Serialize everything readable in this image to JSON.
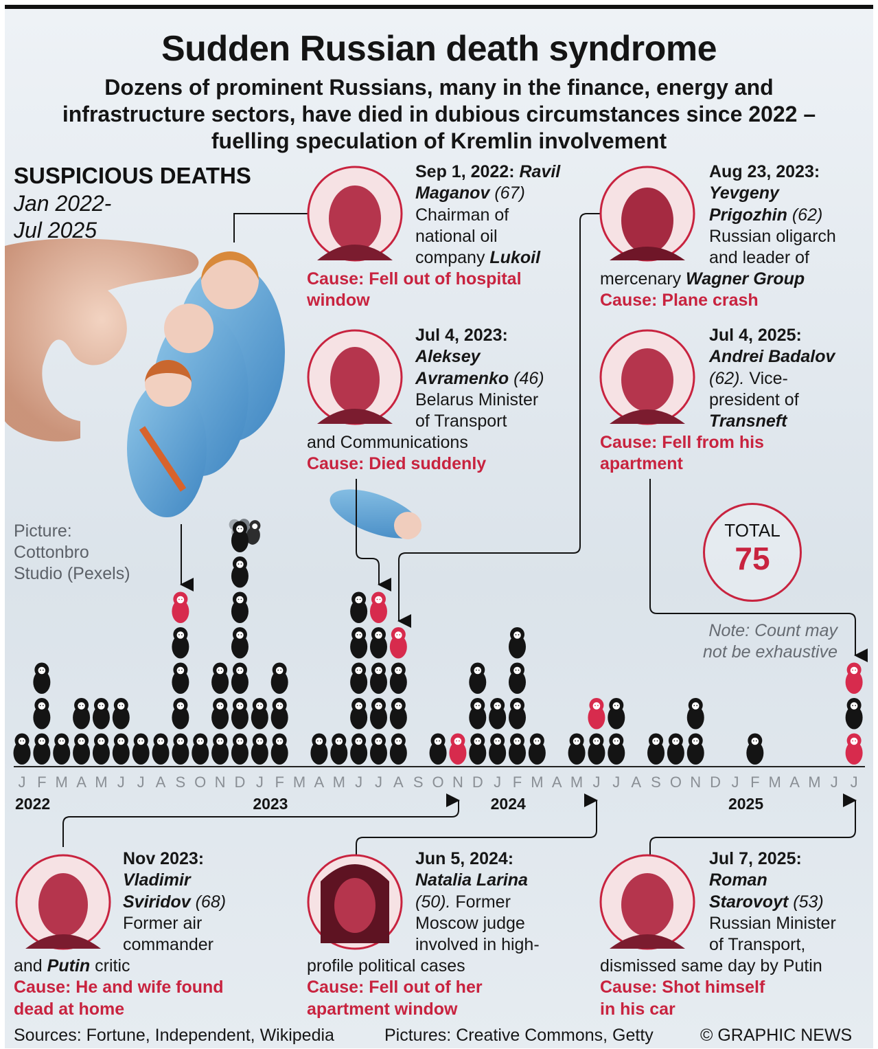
{
  "title": "Sudden Russian death syndrome",
  "subtitle": "Dozens of prominent Russians, many in the finance, energy and infrastructure sectors, have died in dubious circumstances since 2022 – fuelling speculation of Kremlin involvement",
  "section_label": "SUSPICIOUS DEATHS",
  "period_label": "Jan 2022-\nJul 2025",
  "picture_credit": "Picture:\nCottonbro\nStudio (Pexels)",
  "total": {
    "label": "TOTAL",
    "value": "75"
  },
  "note": "Note: Count may not be exhaustive",
  "footer": {
    "sources": "Sources: Fortune, Independent, Wikipedia",
    "pictures": "Pictures: Creative Commons, Getty",
    "copyright": "© GRAPHIC NEWS"
  },
  "colors": {
    "accent": "#c8233f",
    "doll": "#141414",
    "highlight": "#d72b4d"
  },
  "icons": {
    "doll": "matryoshka-doll-icon"
  },
  "stories": [
    {
      "id": "maganov",
      "date": "Sep 1, 2022:",
      "name_a": "Ravil",
      "name_b": "Maganov",
      "age": "(67)",
      "desc": [
        "Chairman of",
        "national oil",
        "company"
      ],
      "org": "Lukoil",
      "cause": [
        "Cause: Fell out of hospital",
        "window"
      ]
    },
    {
      "id": "avramenko",
      "date": "Jul 4, 2023:",
      "name_a": "Aleksey",
      "name_b": "Avramenko",
      "age": "(46)",
      "desc": [
        "Belarus Minister",
        "of Transport",
        "and Communications"
      ],
      "cause": [
        "Cause: Died suddenly"
      ]
    },
    {
      "id": "prigozhin",
      "date": "Aug 23, 2023:",
      "name_a": "Yevgeny",
      "name_b": "Prigozhin",
      "age": "(62)",
      "desc": [
        "Russian oligarch",
        "and leader of",
        "mercenary"
      ],
      "org": "Wagner Group",
      "cause": [
        "Cause: Plane crash"
      ]
    },
    {
      "id": "badalov",
      "date": "Jul 4, 2025:",
      "name_a": "Andrei Badalov",
      "age": "(62).",
      "desc": [
        "Vice-",
        "president of"
      ],
      "org": "Transneft",
      "cause": [
        "Cause: Fell from his",
        "apartment"
      ]
    },
    {
      "id": "sviridov",
      "date": "Nov 2023:",
      "name_a": "Vladimir",
      "name_b": "Sviridov",
      "age": "(68)",
      "desc": [
        "Former air",
        "commander",
        "and"
      ],
      "org": "Putin",
      "org_suffix": "critic",
      "cause": [
        "Cause: He and wife found",
        "dead at home"
      ]
    },
    {
      "id": "larina",
      "date": "Jun 5, 2024:",
      "name_a": "Natalia Larina",
      "age": "(50).",
      "desc": [
        "Former",
        "Moscow judge",
        "involved in high-",
        "profile political cases"
      ],
      "cause": [
        "Cause: Fell out of her",
        "apartment window"
      ]
    },
    {
      "id": "starovoyt",
      "date": "Jul 7, 2025:",
      "name_a": "Roman",
      "name_b": "Starovoyt",
      "age": "(53)",
      "desc": [
        "Russian Minister",
        "of Transport,",
        "dismissed same day by Putin"
      ],
      "cause": [
        "Cause: Shot himself",
        "in his car"
      ]
    }
  ],
  "chart_data": {
    "type": "bar",
    "title": "SUSPICIOUS DEATHS",
    "unit": "deaths per month (one doll = one death)",
    "x_month_labels": [
      "J",
      "F",
      "M",
      "A",
      "M",
      "J",
      "J",
      "A",
      "S",
      "O",
      "N",
      "D",
      "J",
      "F",
      "M",
      "A",
      "M",
      "J",
      "J",
      "A",
      "S",
      "O",
      "N",
      "D",
      "J",
      "F",
      "M",
      "A",
      "M",
      "J",
      "J",
      "A",
      "S",
      "O",
      "N",
      "D",
      "J",
      "F",
      "M",
      "A",
      "M",
      "J",
      "J"
    ],
    "year_labels": [
      {
        "year": "2022",
        "start_index": 0
      },
      {
        "year": "2023",
        "start_index": 12
      },
      {
        "year": "2024",
        "start_index": 24
      },
      {
        "year": "2025",
        "start_index": 36
      }
    ],
    "values": [
      1,
      3,
      1,
      2,
      2,
      2,
      1,
      1,
      5,
      1,
      3,
      7,
      2,
      3,
      0,
      1,
      1,
      5,
      5,
      4,
      0,
      1,
      1,
      3,
      2,
      4,
      1,
      0,
      1,
      2,
      2,
      0,
      1,
      1,
      2,
      0,
      0,
      1,
      0,
      0,
      0,
      0,
      3
    ],
    "highlighted": [
      {
        "index": 8,
        "label": "Ravil Maganov"
      },
      {
        "index": 18,
        "label": "Aleksey Avramenko"
      },
      {
        "index": 19,
        "label": "Yevgeny Prigozhin"
      },
      {
        "index": 22,
        "label": "Vladimir Sviridov"
      },
      {
        "index": 29,
        "label": "Natalia Larina"
      },
      {
        "index": 42,
        "label": "Andrei Badalov"
      },
      {
        "index": 42,
        "label": "Roman Starovoyt"
      }
    ],
    "total": 75
  }
}
